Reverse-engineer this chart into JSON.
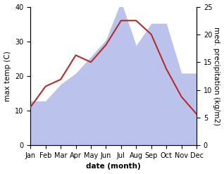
{
  "months": [
    "Jan",
    "Feb",
    "Mar",
    "Apr",
    "May",
    "Jun",
    "Jul",
    "Aug",
    "Sep",
    "Oct",
    "Nov",
    "Dec"
  ],
  "temperature": [
    11,
    17,
    19,
    26,
    24,
    29,
    36,
    36,
    32,
    22,
    14,
    9
  ],
  "precipitation": [
    8,
    8,
    11,
    13,
    16,
    19,
    26,
    18,
    22,
    22,
    13,
    13
  ],
  "temp_color": "#b03030",
  "precip_color_fill": "#b0b8e8",
  "ylim_temp": [
    0,
    40
  ],
  "ylim_precip": [
    0,
    25
  ],
  "temp_scale_max": 40,
  "precip_scale_max": 25,
  "xlabel": "date (month)",
  "ylabel_left": "max temp (C)",
  "ylabel_right": "med. precipitation (kg/m2)",
  "temp_yticks": [
    0,
    10,
    20,
    30,
    40
  ],
  "precip_yticks": [
    0,
    5,
    10,
    15,
    20,
    25
  ],
  "label_fontsize": 7.5,
  "tick_fontsize": 7
}
